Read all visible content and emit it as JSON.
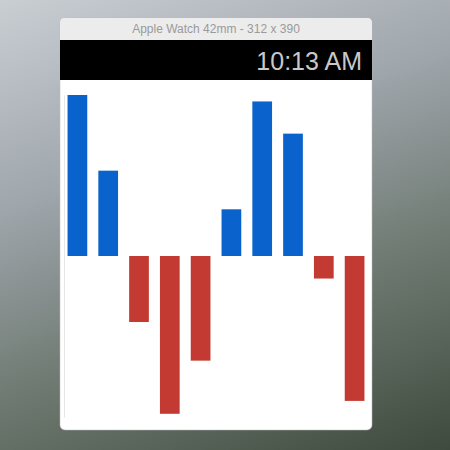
{
  "window": {
    "title": "Apple Watch 42mm - 312 x 390",
    "time": "10:13 AM"
  },
  "chart_data": {
    "type": "bar",
    "categories": [
      null,
      null,
      null,
      null,
      null,
      null,
      null,
      null,
      null,
      null
    ],
    "values": [
      100,
      53,
      -41,
      -98,
      -65,
      29,
      96,
      76,
      -14,
      -90
    ],
    "colors": [
      "#0a63cc",
      "#0a63cc",
      "#c23a32",
      "#c23a32",
      "#c23a32",
      "#0a63cc",
      "#0a63cc",
      "#0a63cc",
      "#c23a32",
      "#c23a32"
    ],
    "ylim": [
      -100,
      100
    ],
    "tick_labels": false
  }
}
